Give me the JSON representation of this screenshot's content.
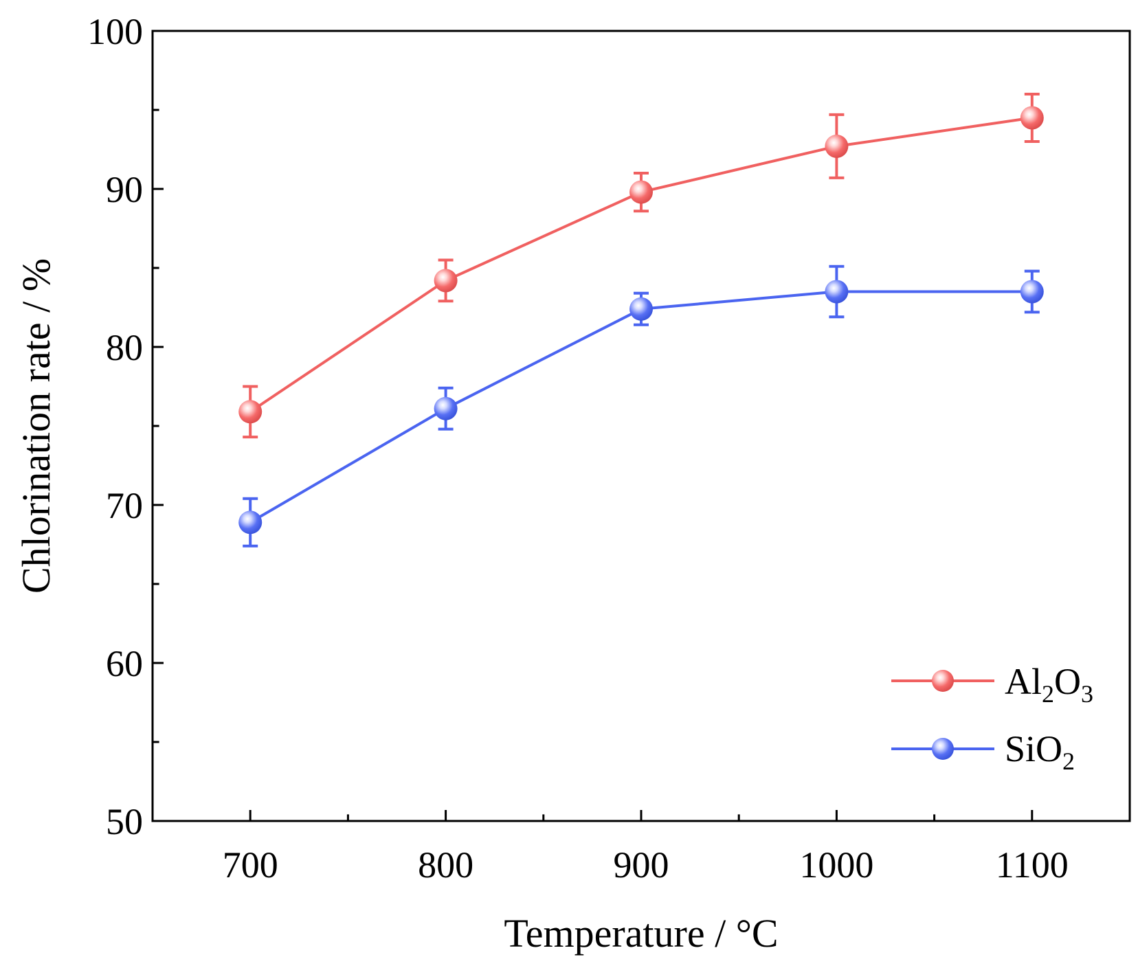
{
  "chart_data": {
    "type": "line",
    "title": "",
    "xlabel": "Temperature / °C",
    "ylabel": "Chlorination rate / %",
    "xlim": [
      650,
      1150
    ],
    "ylim": [
      50,
      100
    ],
    "x": [
      700,
      800,
      900,
      1000,
      1100
    ],
    "xticks": [
      "700",
      "800",
      "900",
      "1000",
      "1100"
    ],
    "yticks": [
      "50",
      "60",
      "70",
      "80",
      "90",
      "100"
    ],
    "legend_position": "bottom-right",
    "series": [
      {
        "name": "Al2O3",
        "label_main": "Al",
        "label_sub1": "2",
        "label_mid": "O",
        "label_sub2": "3",
        "color": "#f06060",
        "values": [
          75.9,
          84.2,
          89.8,
          92.7,
          94.5
        ],
        "errors": [
          1.6,
          1.3,
          1.2,
          2.0,
          1.5
        ]
      },
      {
        "name": "SiO2",
        "label_main": "SiO",
        "label_sub1": "2",
        "label_mid": "",
        "label_sub2": "",
        "color": "#4a64f0",
        "values": [
          68.9,
          76.1,
          82.4,
          83.5,
          83.5
        ],
        "errors": [
          1.5,
          1.3,
          1.0,
          1.6,
          1.3
        ]
      }
    ]
  }
}
